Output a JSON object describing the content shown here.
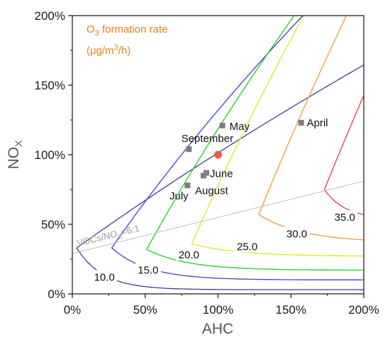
{
  "chart_data": {
    "type": "contour",
    "xlabel": "AHC",
    "ylabel": "NOx",
    "xlim": [
      0,
      200
    ],
    "ylim": [
      0,
      200
    ],
    "x_ticks": [
      "0%",
      "50%",
      "100%",
      "150%",
      "200%"
    ],
    "y_ticks": [
      "0%",
      "50%",
      "100%",
      "150%",
      "200%"
    ],
    "legend": {
      "title_main": "O",
      "title_sub": "3",
      "title_rest": " formation rate",
      "unit_prefix": "(μg/m",
      "unit_sup": "3",
      "unit_suffix": "/h)",
      "color": "#e8801a"
    },
    "contours": [
      {
        "label": "10.0",
        "color": "#3f3f8f",
        "nose_x": 3,
        "nose_y": 33,
        "upper_slope": 0.75,
        "upper_curve": 4,
        "asym_y": 3,
        "lower_decay": 18
      },
      {
        "label": "15.0",
        "color": "#4040cc",
        "nose_x": 27,
        "nose_y": 33,
        "upper_slope": 1.5,
        "upper_curve": 7,
        "asym_y": 10,
        "lower_decay": 25
      },
      {
        "label": "20.0",
        "color": "#1fcc1f",
        "nose_x": 51,
        "nose_y": 32,
        "upper_slope": 1.9,
        "upper_curve": 11,
        "asym_y": 17,
        "lower_decay": 28
      },
      {
        "label": "25.0",
        "color": "#e6e61a",
        "nose_x": 82,
        "nose_y": 36,
        "upper_slope": 2.4,
        "upper_curve": 16,
        "asym_y": 27,
        "lower_decay": 32
      },
      {
        "label": "30.0",
        "color": "#f29a3a",
        "nose_x": 128,
        "nose_y": 57,
        "upper_slope": 2.6,
        "upper_curve": 20,
        "asym_y": 37,
        "lower_decay": 30
      },
      {
        "label": "35.0",
        "color": "#e53c3c",
        "nose_x": 173,
        "nose_y": 75,
        "upper_slope": 2.6,
        "upper_curve": 24,
        "asym_y": 54,
        "lower_decay": 14
      }
    ],
    "contour_labels": [
      {
        "text": "10.0",
        "x": 22,
        "y": 12
      },
      {
        "text": "15.0",
        "x": 52,
        "y": 17
      },
      {
        "text": "20.0",
        "x": 80,
        "y": 28
      },
      {
        "text": "25.0",
        "x": 120,
        "y": 34
      },
      {
        "text": "30.0",
        "x": 154,
        "y": 43
      },
      {
        "text": "35.0",
        "x": 187,
        "y": 55
      }
    ],
    "ratio_line": {
      "label": "VOCs/NO",
      "label_sub": "X",
      "label_suffix": "=6:1",
      "x0": 0,
      "y0": 29,
      "x1": 200,
      "y1": 81,
      "color": "#bdbdbd"
    },
    "months": [
      {
        "name": "April",
        "x": 157,
        "y": 123
      },
      {
        "name": "May",
        "x": 103,
        "y": 121
      },
      {
        "name": "September",
        "x": 80,
        "y": 104
      },
      {
        "name": "June",
        "x": 92,
        "y": 87
      },
      {
        "name": "August",
        "x": 90,
        "y": 85
      },
      {
        "name": "July",
        "x": 79,
        "y": 78
      }
    ],
    "reference_point": {
      "x": 100,
      "y": 100,
      "color": "#f0574f"
    }
  }
}
